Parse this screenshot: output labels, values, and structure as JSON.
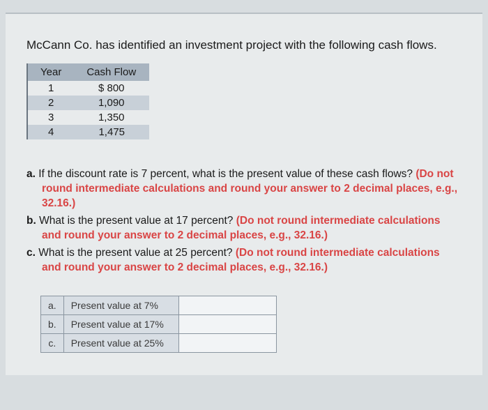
{
  "intro": "McCann Co. has identified an investment project with the following cash flows.",
  "cashflow_table": {
    "headers": [
      "Year",
      "Cash Flow"
    ],
    "rows": [
      [
        "1",
        "$ 800"
      ],
      [
        "2",
        "1,090"
      ],
      [
        "3",
        "1,350"
      ],
      [
        "4",
        "1,475"
      ]
    ],
    "header_bg": "#a8b4c0",
    "alt_row_bg": "#c8d0d8"
  },
  "questions": {
    "a": {
      "label": "a.",
      "text": "If the discount rate is 7 percent, what is the present value of these cash flows? ",
      "instr": "(Do not round intermediate calculations and round your answer to 2 decimal places, e.g., 32.16.)"
    },
    "b": {
      "label": "b.",
      "text": "What is the present value at 17 percent? ",
      "instr": "(Do not round intermediate calculations and round your answer to 2 decimal places, e.g., 32.16.)"
    },
    "c": {
      "label": "c.",
      "text": "What is the present value at 25 percent? ",
      "instr": "(Do not round intermediate calculations and round your answer to 2 decimal places, e.g., 32.16.)"
    }
  },
  "answer_table": {
    "rows": [
      {
        "label": "a.",
        "desc": "Present value at 7%"
      },
      {
        "label": "b.",
        "desc": "Present value at 17%"
      },
      {
        "label": "c.",
        "desc": "Present value at 25%"
      }
    ]
  },
  "colors": {
    "page_bg": "#e8ebec",
    "body_bg": "#d8dde0",
    "instr_color": "#d94545"
  }
}
